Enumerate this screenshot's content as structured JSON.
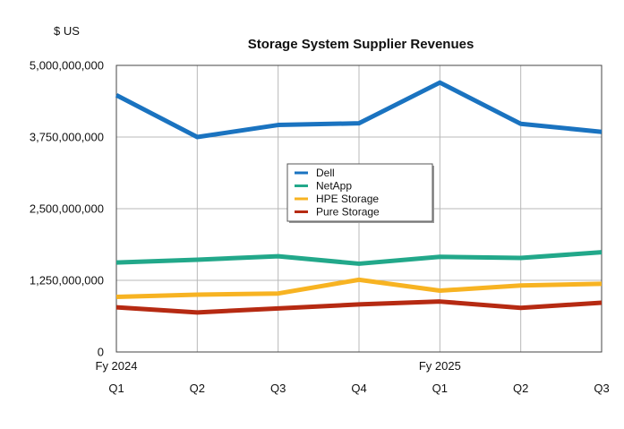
{
  "chart_data": {
    "type": "line",
    "title": "Storage System Supplier Revenues",
    "ylabel": "$ US",
    "xlabel": "",
    "ylim": [
      0,
      5000000000
    ],
    "y_ticks": [
      0,
      1250000000,
      2500000000,
      3750000000,
      5000000000
    ],
    "y_tick_labels": [
      "0",
      "1,250,000,000",
      "2,500,000,000",
      "3,750,000,000",
      "5,000,000,000"
    ],
    "categories": [
      "Q1",
      "Q2",
      "Q3",
      "Q4",
      "Q1",
      "Q2",
      "Q3"
    ],
    "year_labels": [
      {
        "label": "Fy 2024",
        "at_index": 0
      },
      {
        "label": "Fy 2025",
        "at_index": 4
      }
    ],
    "grid": true,
    "legend_position": "center",
    "series": [
      {
        "name": "Dell",
        "color": "#1a73c0",
        "values": [
          4480000000,
          3750000000,
          3960000000,
          3990000000,
          4700000000,
          3980000000,
          3840000000
        ]
      },
      {
        "name": "NetApp",
        "color": "#22a88a",
        "values": [
          1560000000,
          1610000000,
          1670000000,
          1540000000,
          1660000000,
          1640000000,
          1740000000
        ]
      },
      {
        "name": "HPE Storage",
        "color": "#f7b322",
        "values": [
          960000000,
          1000000000,
          1020000000,
          1260000000,
          1070000000,
          1160000000,
          1190000000
        ]
      },
      {
        "name": "Pure Storage",
        "color": "#b62a12",
        "values": [
          780000000,
          690000000,
          760000000,
          830000000,
          880000000,
          770000000,
          860000000
        ]
      }
    ]
  }
}
